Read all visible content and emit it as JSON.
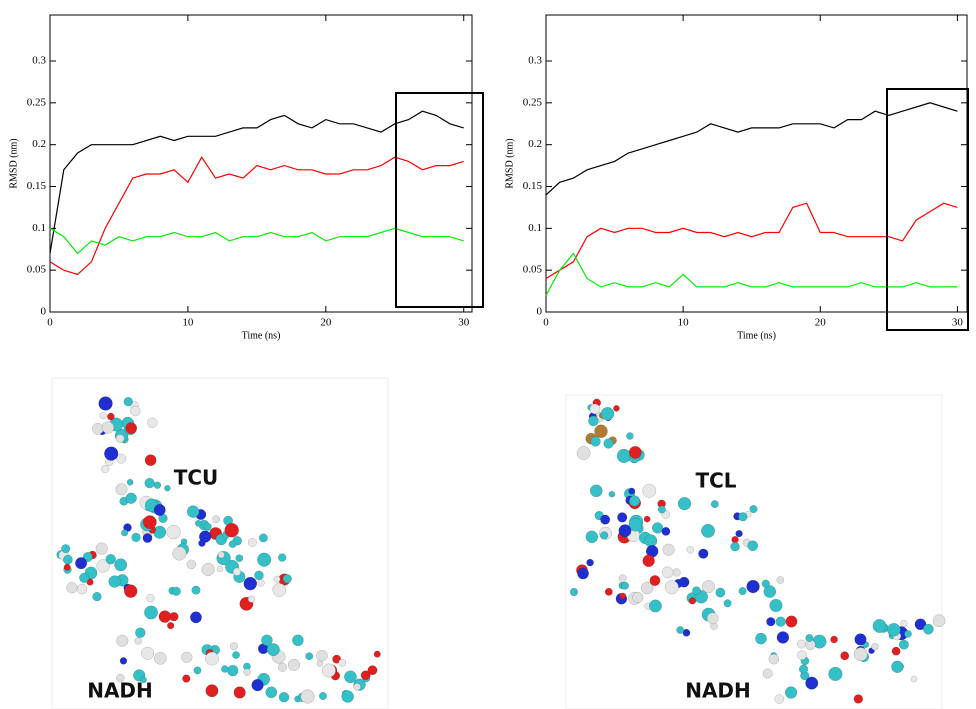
{
  "chart_data": [
    {
      "type": "line",
      "ylabel": "RMSD (nm)",
      "xlabel": "Time (ns)",
      "xlim": [
        0,
        30.6
      ],
      "ylim": [
        0,
        0.355
      ],
      "xticks": [
        0,
        10,
        20,
        30
      ],
      "yticks": [
        0,
        0.05,
        0.1,
        0.15,
        0.2,
        0.25,
        0.3
      ],
      "x": [
        0,
        1,
        2,
        3,
        4,
        5,
        6,
        7,
        8,
        9,
        10,
        11,
        12,
        13,
        14,
        15,
        16,
        17,
        18,
        19,
        20,
        21,
        22,
        23,
        24,
        25,
        26,
        27,
        28,
        29,
        30
      ],
      "series": [
        {
          "color": "#000000",
          "values": [
            0.07,
            0.17,
            0.19,
            0.2,
            0.2,
            0.2,
            0.2,
            0.205,
            0.21,
            0.205,
            0.21,
            0.21,
            0.21,
            0.215,
            0.22,
            0.22,
            0.23,
            0.235,
            0.225,
            0.22,
            0.23,
            0.225,
            0.225,
            0.22,
            0.215,
            0.225,
            0.23,
            0.24,
            0.235,
            0.225,
            0.22
          ]
        },
        {
          "color": "#ff0000",
          "values": [
            0.06,
            0.05,
            0.045,
            0.06,
            0.1,
            0.13,
            0.16,
            0.165,
            0.165,
            0.17,
            0.155,
            0.185,
            0.16,
            0.165,
            0.16,
            0.175,
            0.17,
            0.175,
            0.17,
            0.17,
            0.165,
            0.165,
            0.17,
            0.17,
            0.175,
            0.185,
            0.18,
            0.17,
            0.175,
            0.175,
            0.18
          ]
        },
        {
          "color": "#00ee00",
          "values": [
            0.1,
            0.09,
            0.07,
            0.085,
            0.08,
            0.09,
            0.085,
            0.09,
            0.09,
            0.095,
            0.09,
            0.09,
            0.095,
            0.085,
            0.09,
            0.09,
            0.095,
            0.09,
            0.09,
            0.095,
            0.085,
            0.09,
            0.09,
            0.09,
            0.095,
            0.1,
            0.095,
            0.09,
            0.09,
            0.09,
            0.085
          ]
        }
      ]
    },
    {
      "type": "line",
      "ylabel": "RMSD (nm)",
      "xlabel": "Time (ns)",
      "xlim": [
        0,
        30.7
      ],
      "ylim": [
        0,
        0.355
      ],
      "xticks": [
        0,
        10,
        20,
        30
      ],
      "yticks": [
        0,
        0.05,
        0.1,
        0.15,
        0.2,
        0.25,
        0.3
      ],
      "x": [
        0,
        1,
        2,
        3,
        4,
        5,
        6,
        7,
        8,
        9,
        10,
        11,
        12,
        13,
        14,
        15,
        16,
        17,
        18,
        19,
        20,
        21,
        22,
        23,
        24,
        25,
        26,
        27,
        28,
        29,
        30
      ],
      "series": [
        {
          "color": "#000000",
          "values": [
            0.14,
            0.155,
            0.16,
            0.17,
            0.175,
            0.18,
            0.19,
            0.195,
            0.2,
            0.205,
            0.21,
            0.215,
            0.225,
            0.22,
            0.215,
            0.22,
            0.22,
            0.22,
            0.225,
            0.225,
            0.225,
            0.22,
            0.23,
            0.23,
            0.24,
            0.235,
            0.24,
            0.245,
            0.25,
            0.245,
            0.24
          ]
        },
        {
          "color": "#ff0000",
          "values": [
            0.04,
            0.05,
            0.06,
            0.09,
            0.1,
            0.095,
            0.1,
            0.1,
            0.095,
            0.095,
            0.1,
            0.095,
            0.095,
            0.09,
            0.095,
            0.09,
            0.095,
            0.095,
            0.125,
            0.13,
            0.095,
            0.095,
            0.09,
            0.09,
            0.09,
            0.09,
            0.085,
            0.11,
            0.12,
            0.13,
            0.125
          ]
        },
        {
          "color": "#00ee00",
          "values": [
            0.02,
            0.05,
            0.07,
            0.04,
            0.03,
            0.035,
            0.03,
            0.03,
            0.035,
            0.03,
            0.045,
            0.03,
            0.03,
            0.03,
            0.035,
            0.03,
            0.03,
            0.035,
            0.03,
            0.03,
            0.03,
            0.03,
            0.03,
            0.035,
            0.03,
            0.03,
            0.03,
            0.035,
            0.03,
            0.03,
            0.03
          ]
        }
      ]
    }
  ],
  "panels": [
    {
      "labels": [
        "TCU",
        "NADH"
      ]
    },
    {
      "labels": [
        "TCL",
        "NADH"
      ]
    }
  ]
}
